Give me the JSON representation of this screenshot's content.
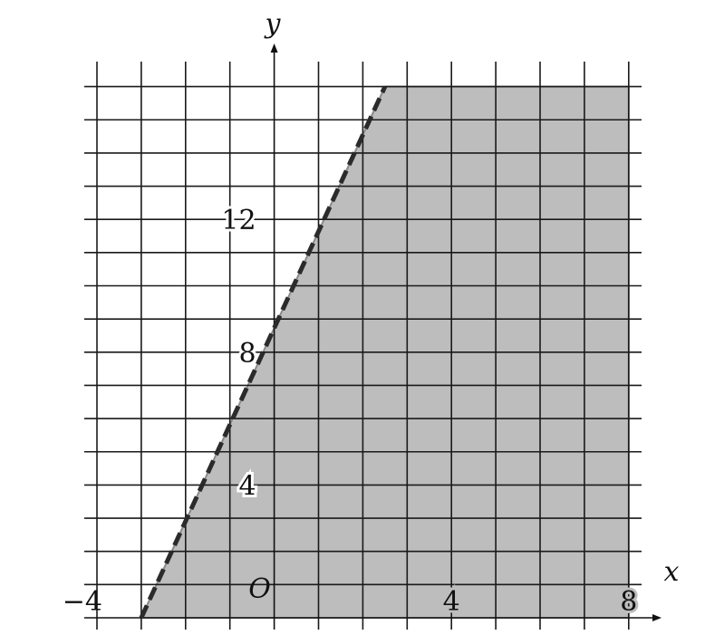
{
  "chart_data": {
    "type": "area",
    "title": "",
    "xlabel": "x",
    "ylabel": "y",
    "origin_label": "O",
    "xlim": [
      -4,
      8
    ],
    "ylim": [
      0,
      16
    ],
    "grid": true,
    "x_tick_labels": [
      {
        "value": -4,
        "text": "−4"
      },
      {
        "value": 4,
        "text": "4"
      },
      {
        "value": 8,
        "text": "8"
      }
    ],
    "y_tick_labels": [
      {
        "value": 4,
        "text": "4"
      },
      {
        "value": 8,
        "text": "8"
      },
      {
        "value": 12,
        "text": "12"
      }
    ],
    "boundary_line": {
      "style": "dashed",
      "points": [
        [
          -3,
          0
        ],
        [
          2.5,
          16
        ]
      ]
    },
    "shaded_region": "right of the boundary line",
    "colors": {
      "shade": "#bdbdbd",
      "grid": "#1a1a1a",
      "boundary": "#2b2b2b"
    }
  }
}
